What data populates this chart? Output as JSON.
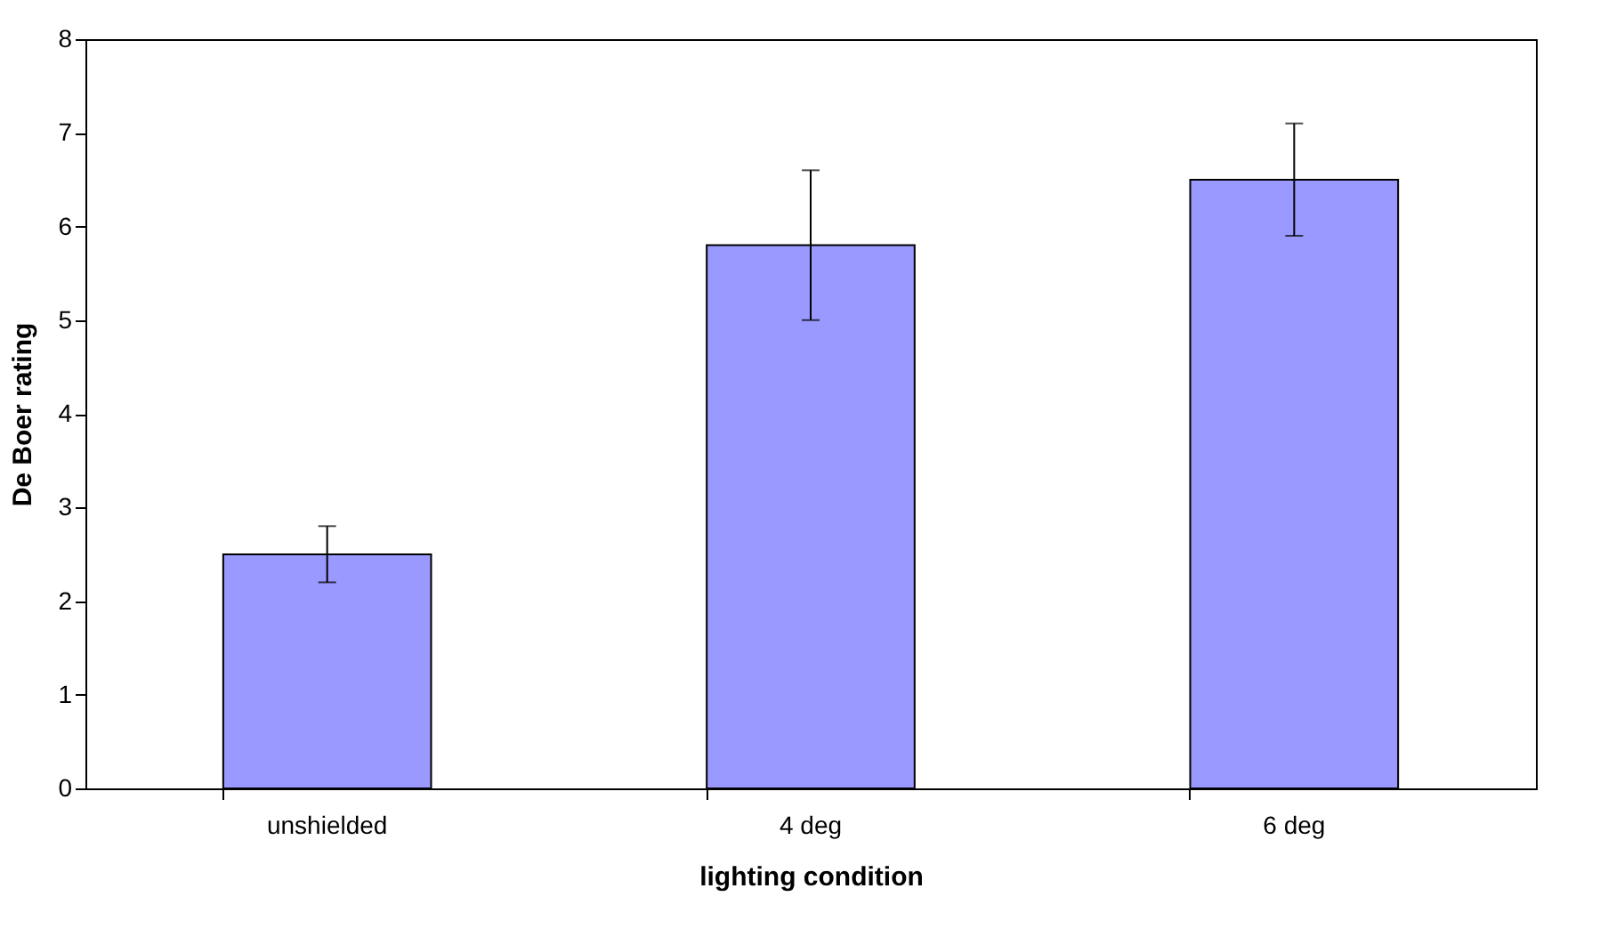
{
  "chart_data": {
    "type": "bar",
    "xlabel": "lighting condition",
    "ylabel": "De Boer rating",
    "categories": [
      "unshielded",
      "4 deg",
      "6 deg"
    ],
    "values": [
      2.5,
      5.8,
      6.5
    ],
    "errors": [
      0.3,
      0.8,
      0.6
    ],
    "color": "#9999ff",
    "ylim": [
      0,
      8
    ],
    "yticks": [
      0,
      1,
      2,
      3,
      4,
      5,
      6,
      7,
      8
    ],
    "grid": false
  }
}
